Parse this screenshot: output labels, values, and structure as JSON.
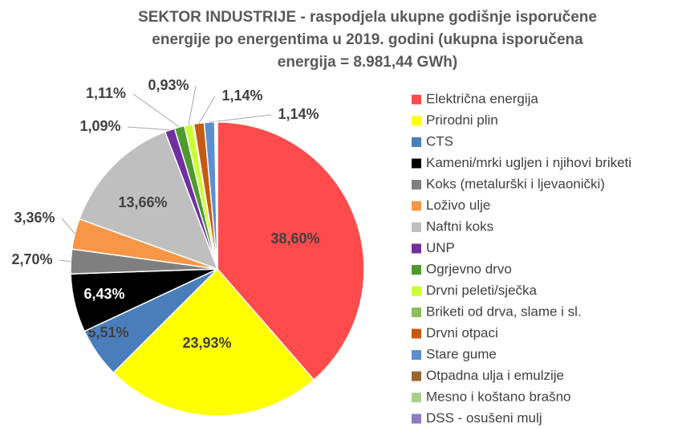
{
  "chart_data": {
    "type": "pie",
    "title": [
      "SEKTOR INDUSTRIJE - raspodjela ukupne godišnje isporučene",
      "energije po energentima u 2019. godini (ukupna isporučena",
      "energija = 8.981,44 GWh)"
    ],
    "categories": [
      "Električna energija",
      "Prirodni plin",
      "CTS",
      "Kameni/mrki ugljen i njihovi briketi",
      "Koks (metalurški i ljevaonički)",
      "Loživo ulje",
      "Naftni koks",
      "UNP",
      "Ogrjevno drvo",
      "Drvni peleti/sječka",
      "Briketi od drva, slame i sl.",
      "Drvni otpaci",
      "Stare gume",
      "Otpadna ulja i emulzije",
      "Mesno i koštano brašno",
      "DSS - osušeni mulj"
    ],
    "values": [
      38.6,
      23.93,
      5.51,
      6.43,
      2.7,
      3.36,
      13.66,
      1.09,
      1.11,
      0.93,
      0.1,
      1.14,
      1.14,
      0.1,
      0.1,
      0.1
    ],
    "value_labels": [
      "38,60%",
      "23,93%",
      "5,51%",
      "6,43%",
      "2,70%",
      "3,36%",
      "13,66%",
      "1,09%",
      "1,11%",
      "0,93%",
      null,
      "1,14%",
      "1,14%",
      null,
      null,
      null
    ],
    "colors": [
      "#ff4b4b",
      "#ffff00",
      "#4a7ebb",
      "#000000",
      "#7f7f7f",
      "#f79646",
      "#bfbfbf",
      "#7030a0",
      "#4e9a2f",
      "#ccff33",
      "#8fbc5a",
      "#c55a11",
      "#5b8fd0",
      "#996633",
      "#a9d18e",
      "#8e7cc3"
    ],
    "legend": "right"
  }
}
